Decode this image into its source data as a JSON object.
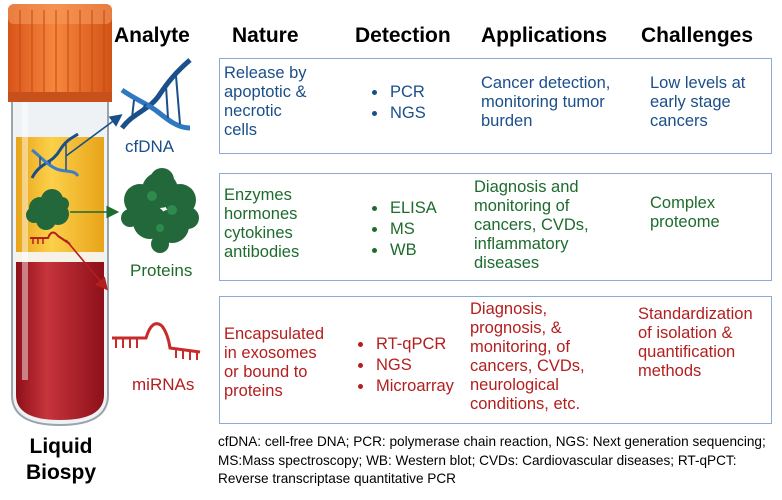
{
  "headers": {
    "analyte": "Analyte",
    "nature": "Nature",
    "detection": "Detection",
    "applications": "Applications",
    "challenges": "Challenges"
  },
  "tube_label": "Liquid\nBiospy",
  "rows": [
    {
      "analyte": "cfDNA",
      "nature": "Release  by\napoptotic  &\nnecrotic\ncells",
      "detection": [
        "PCR",
        "NGS"
      ],
      "applications": "Cancer detection,\nmonitoring tumor\nburden",
      "challenges": "Low levels at\nearly stage\ncancers",
      "color": "#1a4f8a"
    },
    {
      "analyte": "Proteins",
      "nature": "Enzymes\nhormones\ncytokines\nantibodies",
      "detection": [
        "ELISA",
        "MS",
        "WB"
      ],
      "applications": "Diagnosis and\nmonitoring of\ncancers, CVDs,\ninflammatory\ndiseases",
      "challenges": "Complex\nproteome",
      "color": "#1e6b2e"
    },
    {
      "analyte": "miRNAs",
      "nature": "Encapsulated\nin exosomes\nor bound to\nproteins",
      "detection": [
        "RT-qPCR",
        "NGS",
        "Microarray"
      ],
      "applications": "Diagnosis,\nprognosis,  &\nmonitoring,  of\ncancers, CVDs,\nneurological\nconditions, etc.",
      "challenges": "Standardization\nof isolation &\nquantification\nmethods",
      "color": "#b31e1e"
    }
  ],
  "footnote": "cfDNA: cell-free DNA; PCR: polymerase chain reaction, NGS: Next generation sequencing; MS:Mass spectroscopy; WB: Western blot; CVDs: Cardiovascular diseases; RT-qPCT: Reverse transcriptase quantitative PCR",
  "colors": {
    "box_border": "#8fa9d6",
    "cap": "#ef6a22",
    "blood": "#b8222b",
    "plasma": "#f2b92d"
  }
}
